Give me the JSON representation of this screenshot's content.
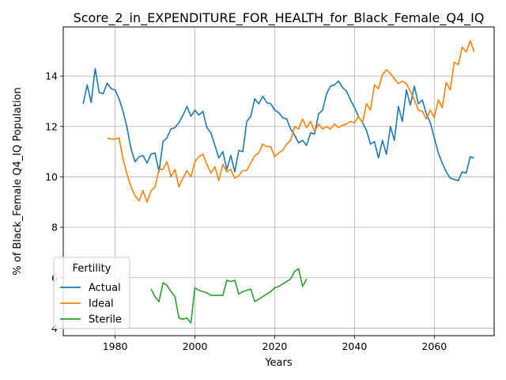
{
  "chart_data": {
    "type": "line",
    "title": "Score_2_in_EXPENDITURE_FOR_HEALTH_for_Black_Female_Q4_IQ",
    "xlabel": "Years",
    "ylabel": "% of Black_Female Q4_IQ Population",
    "xlim": [
      1967,
      2075
    ],
    "ylim": [
      3.7,
      15.95
    ],
    "xticks": [
      1980,
      2000,
      2020,
      2040,
      2060
    ],
    "yticks": [
      4,
      6,
      8,
      10,
      12,
      14
    ],
    "grid": true,
    "legend": {
      "title": "Fertility",
      "placement": "lower-left"
    },
    "series": [
      {
        "name": "Actual",
        "color": "#1f77b4",
        "x": [
          1972,
          1973,
          1974,
          1975,
          1976,
          1977,
          1978,
          1979,
          1980,
          1981,
          1982,
          1983,
          1984,
          1985,
          1986,
          1987,
          1988,
          1989,
          1990,
          1991,
          1992,
          1993,
          1994,
          1995,
          1996,
          1997,
          1998,
          1999,
          2000,
          2001,
          2002,
          2003,
          2004,
          2005,
          2006,
          2007,
          2008,
          2009,
          2010,
          2011,
          2012,
          2013,
          2014,
          2015,
          2016,
          2017,
          2018,
          2019,
          2020,
          2021,
          2022,
          2023,
          2024,
          2025,
          2026,
          2027,
          2028,
          2029,
          2030,
          2031,
          2032,
          2033,
          2034,
          2035,
          2036,
          2037,
          2038,
          2039,
          2040,
          2041,
          2042,
          2043,
          2044,
          2045,
          2046,
          2047,
          2048,
          2049,
          2050,
          2051,
          2052,
          2053,
          2054,
          2055,
          2056,
          2057,
          2058,
          2059,
          2060,
          2061,
          2062,
          2063,
          2064,
          2065,
          2066,
          2067,
          2068,
          2069,
          2070
        ],
        "y": [
          12.9,
          13.65,
          12.95,
          14.3,
          13.35,
          13.3,
          13.72,
          13.5,
          13.45,
          13.1,
          12.6,
          11.95,
          11.1,
          10.6,
          10.8,
          10.85,
          10.55,
          10.9,
          10.95,
          10.2,
          11.4,
          11.55,
          11.9,
          11.95,
          12.15,
          12.45,
          12.8,
          12.4,
          12.65,
          12.45,
          12.6,
          11.95,
          11.75,
          11.25,
          10.75,
          11.0,
          10.3,
          10.85,
          10.2,
          11.05,
          11.0,
          12.2,
          12.4,
          13.1,
          12.9,
          13.2,
          12.95,
          12.9,
          12.65,
          12.55,
          12.35,
          12.3,
          11.9,
          11.65,
          11.35,
          11.45,
          11.25,
          11.75,
          11.7,
          12.5,
          12.65,
          13.3,
          13.6,
          13.65,
          13.8,
          13.55,
          13.4,
          13.05,
          12.75,
          12.4,
          12.15,
          11.85,
          11.3,
          11.4,
          10.75,
          11.45,
          10.9,
          12.0,
          11.45,
          12.8,
          12.2,
          13.45,
          12.85,
          13.6,
          12.9,
          13.05,
          12.5,
          12.15,
          11.55,
          10.95,
          10.55,
          10.2,
          9.95,
          9.9,
          9.85,
          10.2,
          10.15,
          10.8,
          10.75
        ]
      },
      {
        "name": "Ideal",
        "color": "#ff7f0e",
        "x": [
          1978,
          1979,
          1980,
          1981,
          1982,
          1983,
          1984,
          1985,
          1986,
          1987,
          1988,
          1989,
          1990,
          1991,
          1992,
          1993,
          1994,
          1995,
          1996,
          1997,
          1998,
          1999,
          2000,
          2001,
          2002,
          2003,
          2004,
          2005,
          2006,
          2007,
          2008,
          2009,
          2010,
          2011,
          2012,
          2013,
          2014,
          2015,
          2016,
          2017,
          2018,
          2019,
          2020,
          2021,
          2022,
          2023,
          2024,
          2025,
          2026,
          2027,
          2028,
          2029,
          2030,
          2031,
          2032,
          2033,
          2034,
          2035,
          2036,
          2037,
          2038,
          2039,
          2040,
          2041,
          2042,
          2043,
          2044,
          2045,
          2046,
          2047,
          2048,
          2049,
          2050,
          2051,
          2052,
          2053,
          2054,
          2055,
          2056,
          2057,
          2058,
          2059,
          2060,
          2061,
          2062,
          2063,
          2064,
          2065,
          2066,
          2067,
          2068,
          2069,
          2070
        ],
        "y": [
          11.55,
          11.5,
          11.5,
          11.55,
          10.7,
          10.1,
          9.6,
          9.25,
          9.05,
          9.45,
          9.0,
          9.45,
          9.6,
          10.3,
          10.3,
          10.6,
          10.0,
          10.3,
          9.6,
          9.95,
          10.25,
          10.0,
          10.6,
          10.8,
          10.9,
          10.5,
          10.15,
          10.4,
          9.85,
          10.5,
          10.2,
          10.3,
          9.95,
          10.05,
          10.25,
          10.25,
          10.55,
          10.85,
          10.95,
          11.3,
          11.2,
          11.2,
          10.8,
          10.95,
          11.05,
          11.3,
          11.45,
          12.0,
          11.9,
          12.3,
          11.95,
          12.2,
          11.8,
          12.1,
          11.9,
          12.0,
          11.9,
          12.1,
          11.95,
          12.05,
          12.1,
          12.2,
          12.15,
          12.4,
          12.15,
          12.9,
          12.65,
          13.65,
          13.5,
          14.05,
          14.25,
          14.1,
          13.9,
          13.7,
          13.8,
          13.7,
          13.4,
          13.05,
          12.65,
          12.6,
          12.3,
          12.65,
          12.35,
          13.05,
          12.75,
          13.75,
          13.45,
          14.55,
          14.45,
          15.15,
          14.95,
          15.4,
          14.95
        ]
      },
      {
        "name": "Sterile",
        "color": "#2ca02c",
        "x": [
          1989,
          1990,
          1991,
          1992,
          1993,
          1994,
          1995,
          1996,
          1997,
          1998,
          1999,
          2000,
          2001,
          2002,
          2003,
          2004,
          2005,
          2006,
          2007,
          2008,
          2009,
          2010,
          2011,
          2012,
          2013,
          2014,
          2015,
          2016,
          2017,
          2018,
          2019,
          2020,
          2021,
          2022,
          2023,
          2024,
          2025,
          2026,
          2027,
          2028
        ],
        "y": [
          5.55,
          5.25,
          5.05,
          5.8,
          5.7,
          5.45,
          5.25,
          4.4,
          4.35,
          4.4,
          4.2,
          5.6,
          5.5,
          5.45,
          5.4,
          5.3,
          5.3,
          5.3,
          5.3,
          5.9,
          5.85,
          5.9,
          5.35,
          5.45,
          5.5,
          5.55,
          5.05,
          5.15,
          5.25,
          5.35,
          5.45,
          5.6,
          5.65,
          5.75,
          5.85,
          5.95,
          6.25,
          6.35,
          5.65,
          5.95
        ]
      }
    ]
  }
}
